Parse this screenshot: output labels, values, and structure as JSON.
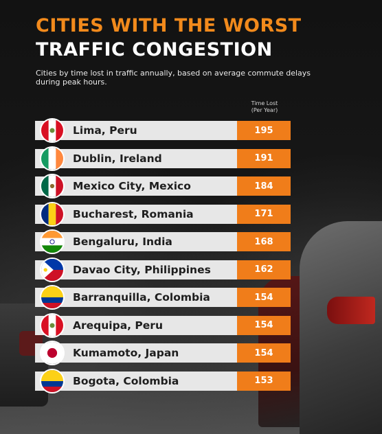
{
  "header": {
    "title_line1": "CITIES WITH THE WORST",
    "title_line2": "TRAFFIC CONGESTION",
    "subtitle": "Cities by time lost in traffic annually, based on average commute delays during peak hours.",
    "column_header": "Time Lost\n(Per Year)"
  },
  "colors": {
    "accent": "#f07d1a",
    "bar": "#e7e7e7",
    "title_accent": "#f28a1c"
  },
  "chart_data": {
    "type": "bar",
    "title": "CITIES WITH THE WORST TRAFFIC CONGESTION",
    "subtitle": "Cities by time lost in traffic annually, based on average commute delays during peak hours.",
    "value_label": "Time Lost (Per Year)",
    "categories": [
      "Lima, Peru",
      "Dublin, Ireland",
      "Mexico City, Mexico",
      "Bucharest, Romania",
      "Bengaluru, India",
      "Davao City, Philippines",
      "Barranquilla, Colombia",
      "Arequipa, Peru",
      "Kumamoto, Japan",
      "Bogota, Colombia"
    ],
    "values": [
      195,
      191,
      184,
      171,
      168,
      162,
      154,
      154,
      154,
      153
    ],
    "flags": [
      "peru-flag-icon",
      "ireland-flag-icon",
      "mexico-flag-icon",
      "romania-flag-icon",
      "india-flag-icon",
      "philippines-flag-icon",
      "colombia-flag-icon",
      "peru-flag-icon",
      "japan-flag-icon",
      "colombia-flag-icon"
    ]
  }
}
